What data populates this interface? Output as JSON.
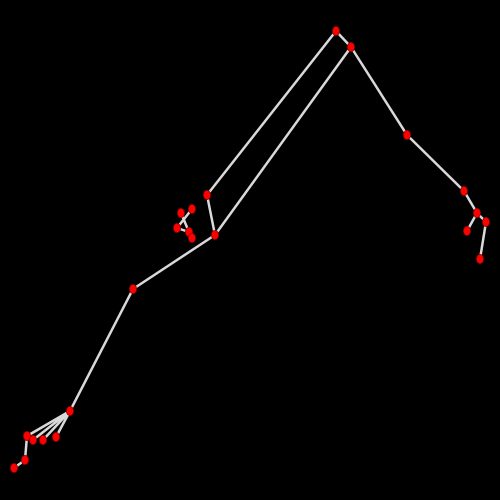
{
  "scene": {
    "background": "#000000",
    "bone_color": "#d9d9d9",
    "joint_color": "#ff0000",
    "joint_outline": "#8b0000"
  }
}
